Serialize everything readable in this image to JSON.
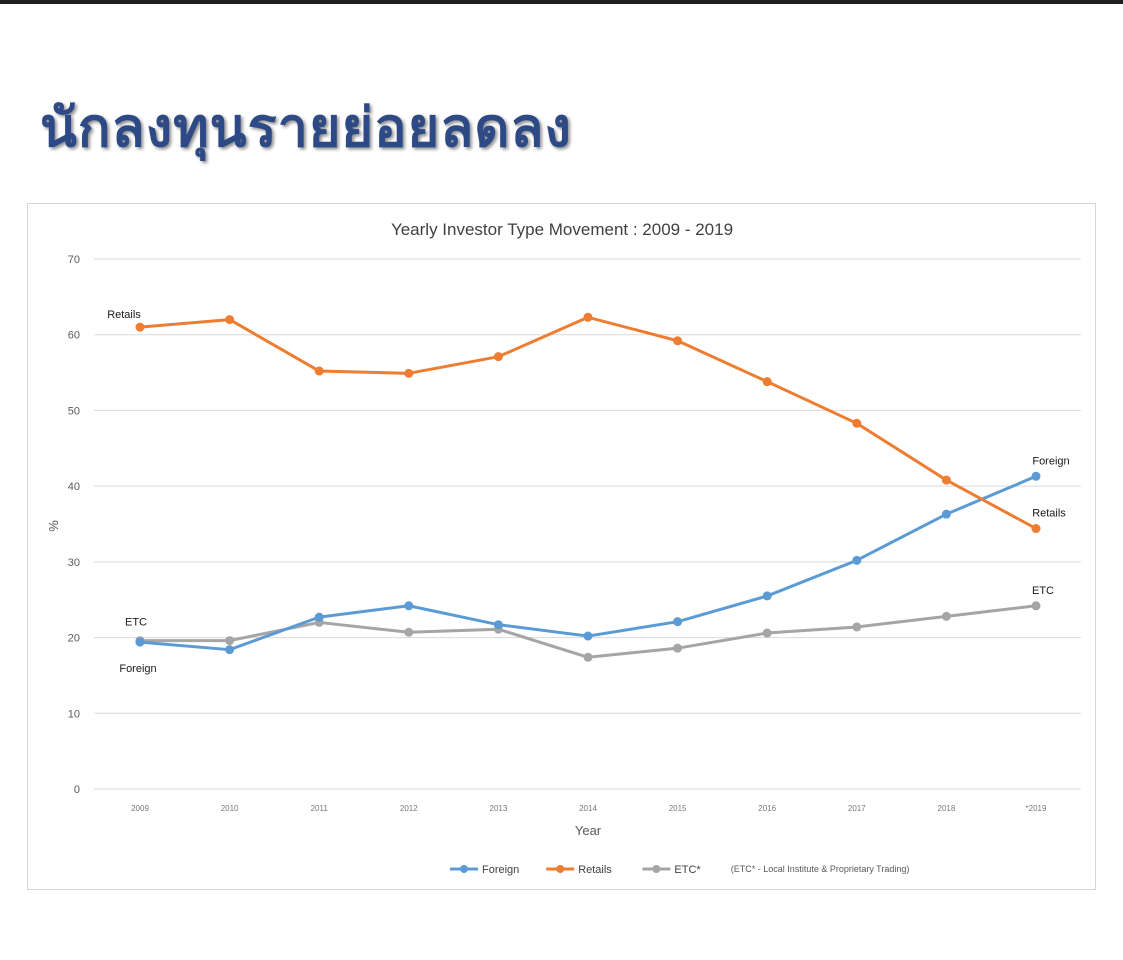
{
  "slide": {
    "title": "นักลงทุนรายย่อยลดลง"
  },
  "colors": {
    "foreign": "#5b9bd5",
    "retails": "#ed7d31",
    "etc": "#a5a5a5",
    "grid": "#d9d9d9",
    "title": "#2d4a86"
  },
  "chart_data": {
    "type": "line",
    "title": "Yearly Investor Type Movement : 2009 - 2019",
    "xlabel": "Year",
    "ylabel": "%",
    "ylim": [
      0,
      70
    ],
    "yticks": [
      "0",
      "10",
      "20",
      "30",
      "40",
      "50",
      "60",
      "70"
    ],
    "categories": [
      "2009",
      "2010",
      "2011",
      "2012",
      "2013",
      "2014",
      "2015",
      "2016",
      "2017",
      "2018",
      "*2019"
    ],
    "grid": true,
    "legend_position": "bottom",
    "series": [
      {
        "name": "Foreign",
        "color": "#5b9bd5",
        "values": [
          19.4,
          18.4,
          22.7,
          24.2,
          21.7,
          20.2,
          22.1,
          25.5,
          30.2,
          36.3,
          41.3
        ]
      },
      {
        "name": "Retails",
        "color": "#ed7d31",
        "values": [
          61.0,
          62.0,
          55.2,
          54.9,
          57.1,
          62.3,
          59.2,
          53.8,
          48.3,
          40.8,
          34.4
        ]
      },
      {
        "name": "ETC*",
        "color": "#a5a5a5",
        "values": [
          19.6,
          19.6,
          22.0,
          20.7,
          21.1,
          17.4,
          18.6,
          20.6,
          21.4,
          22.8,
          24.2
        ]
      }
    ],
    "annotations": [
      {
        "text": "Retails",
        "series": 1,
        "index": 0,
        "pos": "above"
      },
      {
        "text": "ETC",
        "series": 2,
        "index": 0,
        "pos": "above"
      },
      {
        "text": "Foreign",
        "series": 0,
        "index": 0,
        "pos": "below"
      },
      {
        "text": "Foreign",
        "series": 0,
        "index": 10,
        "pos": "above"
      },
      {
        "text": "Retails",
        "series": 1,
        "index": 10,
        "pos": "above"
      },
      {
        "text": "ETC",
        "series": 2,
        "index": 10,
        "pos": "above"
      }
    ],
    "legend_note": "(ETC* - Local Institute & Proprietary Trading)"
  }
}
